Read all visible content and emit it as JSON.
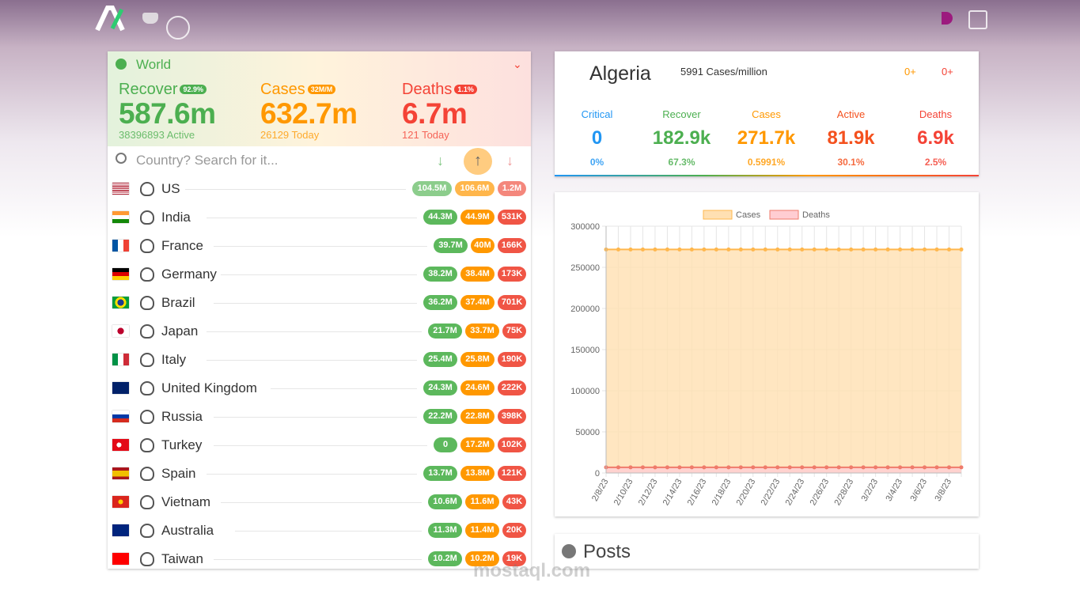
{
  "world": {
    "label": "World",
    "recover": {
      "label": "Recover",
      "badge": "92.9%",
      "value": "587.6m",
      "sub": "38396893 Active"
    },
    "cases": {
      "label": "Cases",
      "badge": "32M/M",
      "value": "632.7m",
      "sub": "26129 Today"
    },
    "deaths": {
      "label": "Deaths",
      "badge": "1.1%",
      "value": "6.7m",
      "sub": "121 Today"
    }
  },
  "table": {
    "search_placeholder": "Country? Search for it...",
    "rows": [
      [
        "US",
        "104.5M",
        "106.6M",
        "1.2M"
      ],
      [
        "India",
        "44.3M",
        "44.9M",
        "531K"
      ],
      [
        "France",
        "39.7M",
        "40M",
        "166K"
      ],
      [
        "Germany",
        "38.2M",
        "38.4M",
        "173K"
      ],
      [
        "Brazil",
        "36.2M",
        "37.4M",
        "701K"
      ],
      [
        "Japan",
        "21.7M",
        "33.7M",
        "75K"
      ],
      [
        "Italy",
        "25.4M",
        "25.8M",
        "190K"
      ],
      [
        "United Kingdom",
        "24.3M",
        "24.6M",
        "222K"
      ],
      [
        "Russia",
        "22.2M",
        "22.8M",
        "398K"
      ],
      [
        "Turkey",
        "0",
        "17.2M",
        "102K"
      ],
      [
        "Spain",
        "13.7M",
        "13.8M",
        "121K"
      ],
      [
        "Vietnam",
        "10.6M",
        "11.6M",
        "43K"
      ],
      [
        "Australia",
        "11.3M",
        "11.4M",
        "20K"
      ],
      [
        "Taiwan",
        "10.2M",
        "10.2M",
        "19K"
      ]
    ]
  },
  "detail": {
    "country": "Algeria",
    "cases_per_million": "5991 Cases/million",
    "toggles": [
      "0+",
      "0+"
    ],
    "stats": [
      {
        "label": "Critical",
        "value": "0",
        "percent": "0%"
      },
      {
        "label": "Recover",
        "value": "182.9k",
        "percent": "67.3%"
      },
      {
        "label": "Cases",
        "value": "271.7k",
        "percent": "0.5991%"
      },
      {
        "label": "Active",
        "value": "81.9k",
        "percent": "30.1%"
      },
      {
        "label": "Deaths",
        "value": "6.9k",
        "percent": "2.5%"
      }
    ]
  },
  "chart_data": {
    "type": "line",
    "categories": [
      "2/8/23",
      null,
      "2/10/23",
      null,
      "2/12/23",
      null,
      "2/14/23",
      null,
      "2/16/23",
      null,
      "2/18/23",
      null,
      "2/20/23",
      null,
      "2/22/23",
      null,
      "2/24/23",
      null,
      "2/26/23",
      null,
      "2/28/23",
      null,
      "3/2/23",
      null,
      "3/4/23",
      null,
      "3/6/23",
      null,
      "3/8/23",
      null
    ],
    "series": [
      {
        "name": "Cases",
        "color": "#ffb74d",
        "fill": "#ffe0b2",
        "values": [
          271700,
          271700,
          271700,
          271700,
          271700,
          271700,
          271700,
          271700,
          271700,
          271700,
          271700,
          271700,
          271700,
          271700,
          271700,
          271700,
          271700,
          271700,
          271700,
          271700,
          271700,
          271700,
          271700,
          271700,
          271700,
          271700,
          271700,
          271700,
          271700,
          271700
        ]
      },
      {
        "name": "Deaths",
        "color": "#ef7b6b",
        "fill": "#ffcdd2",
        "values": [
          6900,
          6900,
          6900,
          6900,
          6900,
          6900,
          6900,
          6900,
          6900,
          6900,
          6900,
          6900,
          6900,
          6900,
          6900,
          6900,
          6900,
          6900,
          6900,
          6900,
          6900,
          6900,
          6900,
          6900,
          6900,
          6900,
          6900,
          6900,
          6900,
          6900
        ]
      }
    ],
    "ylim": [
      0,
      300000
    ],
    "yticks": [
      0,
      50000,
      100000,
      150000,
      200000,
      250000,
      300000
    ],
    "grid": true
  },
  "posts": {
    "title": "Posts"
  },
  "watermark": "mostaql.com"
}
